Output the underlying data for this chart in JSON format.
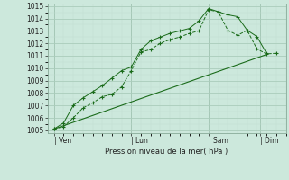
{
  "background_color": "#cce8dc",
  "grid_color_major": "#aaccbb",
  "grid_color_minor": "#c0ddd0",
  "line_color": "#1a6b1a",
  "title": "Pression niveau de la mer( hPa )",
  "ylim": [
    1004.8,
    1015.2
  ],
  "yticks": [
    1005,
    1006,
    1007,
    1008,
    1009,
    1010,
    1011,
    1012,
    1013,
    1014,
    1015
  ],
  "xtick_labels": [
    "| Ven",
    "| Lun",
    "| Sam",
    "| Dim"
  ],
  "xtick_positions": [
    0,
    24,
    48,
    64
  ],
  "xlim": [
    -2,
    72
  ],
  "line1_x": [
    0,
    3,
    6,
    9,
    12,
    15,
    18,
    21,
    24,
    27,
    30,
    33,
    36,
    39,
    42,
    45,
    48,
    51,
    54,
    57,
    60,
    63,
    66,
    69
  ],
  "line1_y": [
    1005.1,
    1005.3,
    1006.0,
    1006.8,
    1007.2,
    1007.7,
    1007.9,
    1008.5,
    1009.8,
    1011.3,
    1011.5,
    1012.0,
    1012.3,
    1012.5,
    1012.8,
    1013.0,
    1014.7,
    1014.55,
    1013.05,
    1012.65,
    1013.05,
    1011.55,
    1011.15,
    1011.2
  ],
  "line2_x": [
    0,
    3,
    6,
    9,
    12,
    15,
    18,
    21,
    24,
    27,
    30,
    33,
    36,
    39,
    42,
    45,
    48,
    51,
    54,
    57,
    60,
    63,
    66
  ],
  "line2_y": [
    1005.1,
    1005.6,
    1007.0,
    1007.6,
    1008.1,
    1008.6,
    1009.2,
    1009.8,
    1010.1,
    1011.5,
    1012.2,
    1012.5,
    1012.8,
    1013.0,
    1013.2,
    1013.8,
    1014.8,
    1014.55,
    1014.3,
    1014.15,
    1013.05,
    1012.55,
    1011.2
  ],
  "line3_x": [
    0,
    66
  ],
  "line3_y": [
    1005.1,
    1011.1
  ]
}
